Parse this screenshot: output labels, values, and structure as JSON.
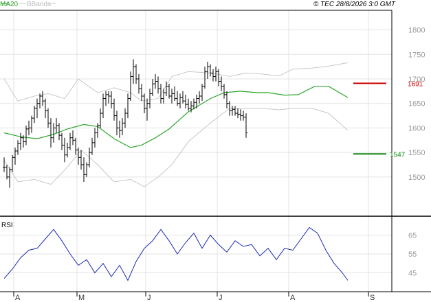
{
  "header": {
    "legend_ma": "MA20",
    "legend_bbands": "BBands",
    "source": "© TEC 28/8/2026 3:0 GMT"
  },
  "rsi_label": "RSI",
  "colors": {
    "ma": "#2aa52a",
    "bands": "#c8c8c8",
    "bar": "#000000",
    "rsi": "#1a2ab0",
    "resistance": "#cc0000",
    "support": "#118811",
    "grid": "#e3e3e3",
    "axis": "#000000"
  },
  "chart_data": [
    {
      "type": "ohlc",
      "title": "",
      "ylim": [
        1420,
        1840
      ],
      "y_ticks": [
        "1800",
        "1750",
        "1700",
        "1650",
        "1600",
        "1550",
        "1500"
      ],
      "x_ticks": [
        "A",
        "M",
        "J",
        "J",
        "A",
        "S"
      ],
      "grid": true,
      "series": [
        {
          "name": "MA20",
          "x": [
            0,
            6,
            12,
            18,
            23,
            29,
            34,
            40,
            46,
            50,
            55,
            60,
            67,
            75,
            80,
            86,
            92,
            96,
            102,
            107,
            113,
            118,
            125
          ],
          "values": [
            1590,
            1582,
            1578,
            1587,
            1598,
            1607,
            1603,
            1578,
            1560,
            1565,
            1580,
            1598,
            1633,
            1660,
            1672,
            1675,
            1672,
            1672,
            1667,
            1668,
            1685,
            1685,
            1662
          ]
        },
        {
          "name": "BBands upper",
          "x": [
            0,
            5,
            11,
            16,
            22,
            27,
            34,
            40,
            46,
            50,
            56,
            61,
            67,
            75,
            82,
            88,
            94,
            100,
            105,
            112,
            118,
            125
          ],
          "values": [
            1700,
            1655,
            1665,
            1670,
            1660,
            1700,
            1672,
            1682,
            1672,
            1655,
            1660,
            1705,
            1715,
            1712,
            1705,
            1712,
            1710,
            1706,
            1720,
            1722,
            1726,
            1733
          ]
        },
        {
          "name": "BBands lower",
          "x": [
            0,
            5,
            11,
            17,
            23,
            28,
            34,
            40,
            46,
            51,
            56,
            61,
            67,
            75,
            82,
            88,
            94,
            100,
            105,
            112,
            118,
            125
          ],
          "values": [
            1535,
            1490,
            1495,
            1485,
            1520,
            1555,
            1525,
            1490,
            1495,
            1480,
            1500,
            1525,
            1572,
            1610,
            1640,
            1640,
            1640,
            1637,
            1640,
            1640,
            1630,
            1595
          ]
        }
      ],
      "bars": [
        [
          1520,
          1540,
          1510,
          1520
        ],
        [
          1520,
          1525,
          1495,
          1500
        ],
        [
          1500,
          1520,
          1478,
          1515
        ],
        [
          1515,
          1545,
          1510,
          1540
        ],
        [
          1540,
          1560,
          1525,
          1553
        ],
        [
          1553,
          1575,
          1545,
          1568
        ],
        [
          1568,
          1590,
          1555,
          1580
        ],
        [
          1580,
          1585,
          1560,
          1572
        ],
        [
          1572,
          1605,
          1565,
          1598
        ],
        [
          1598,
          1615,
          1585,
          1600
        ],
        [
          1600,
          1625,
          1590,
          1620
        ],
        [
          1620,
          1645,
          1610,
          1640
        ],
        [
          1640,
          1660,
          1620,
          1650
        ],
        [
          1650,
          1670,
          1640,
          1665
        ],
        [
          1665,
          1675,
          1645,
          1655
        ],
        [
          1655,
          1660,
          1620,
          1635
        ],
        [
          1635,
          1640,
          1600,
          1610
        ],
        [
          1610,
          1620,
          1560,
          1580
        ],
        [
          1580,
          1610,
          1570,
          1600
        ],
        [
          1600,
          1620,
          1590,
          1605
        ],
        [
          1605,
          1610,
          1575,
          1585
        ],
        [
          1585,
          1590,
          1555,
          1565
        ],
        [
          1565,
          1580,
          1530,
          1545
        ],
        [
          1545,
          1570,
          1540,
          1560
        ],
        [
          1560,
          1590,
          1555,
          1580
        ],
        [
          1580,
          1595,
          1565,
          1575
        ],
        [
          1575,
          1580,
          1545,
          1555
        ],
        [
          1555,
          1560,
          1525,
          1540
        ],
        [
          1540,
          1555,
          1515,
          1525
        ],
        [
          1525,
          1540,
          1490,
          1505
        ],
        [
          1505,
          1530,
          1500,
          1525
        ],
        [
          1525,
          1560,
          1520,
          1550
        ],
        [
          1550,
          1580,
          1545,
          1570
        ],
        [
          1570,
          1600,
          1560,
          1590
        ],
        [
          1590,
          1610,
          1580,
          1605
        ],
        [
          1605,
          1640,
          1600,
          1630
        ],
        [
          1630,
          1670,
          1620,
          1660
        ],
        [
          1660,
          1675,
          1645,
          1668
        ],
        [
          1668,
          1675,
          1650,
          1665
        ],
        [
          1665,
          1675,
          1640,
          1650
        ],
        [
          1650,
          1660,
          1615,
          1625
        ],
        [
          1625,
          1635,
          1585,
          1600
        ],
        [
          1600,
          1615,
          1580,
          1595
        ],
        [
          1595,
          1620,
          1585,
          1610
        ],
        [
          1610,
          1640,
          1600,
          1630
        ],
        [
          1630,
          1670,
          1620,
          1660
        ],
        [
          1660,
          1715,
          1655,
          1705
        ],
        [
          1705,
          1740,
          1690,
          1725
        ],
        [
          1725,
          1730,
          1690,
          1700
        ],
        [
          1700,
          1710,
          1670,
          1680
        ],
        [
          1680,
          1690,
          1655,
          1665
        ],
        [
          1665,
          1670,
          1630,
          1640
        ],
        [
          1640,
          1660,
          1615,
          1650
        ],
        [
          1650,
          1680,
          1640,
          1670
        ],
        [
          1670,
          1700,
          1665,
          1690
        ],
        [
          1690,
          1710,
          1680,
          1695
        ],
        [
          1695,
          1705,
          1670,
          1680
        ],
        [
          1680,
          1690,
          1650,
          1660
        ],
        [
          1660,
          1680,
          1650,
          1672
        ],
        [
          1672,
          1695,
          1665,
          1685
        ],
        [
          1685,
          1690,
          1660,
          1665
        ],
        [
          1665,
          1680,
          1650,
          1670
        ],
        [
          1670,
          1685,
          1655,
          1660
        ],
        [
          1660,
          1675,
          1645,
          1650
        ],
        [
          1650,
          1670,
          1640,
          1662
        ],
        [
          1662,
          1675,
          1650,
          1655
        ],
        [
          1655,
          1668,
          1640,
          1648
        ],
        [
          1648,
          1660,
          1635,
          1640
        ],
        [
          1640,
          1655,
          1632,
          1645
        ],
        [
          1645,
          1660,
          1638,
          1652
        ],
        [
          1652,
          1668,
          1640,
          1660
        ],
        [
          1660,
          1675,
          1650,
          1665
        ],
        [
          1665,
          1690,
          1655,
          1685
        ],
        [
          1685,
          1725,
          1680,
          1715
        ],
        [
          1715,
          1735,
          1700,
          1725
        ],
        [
          1725,
          1730,
          1705,
          1712
        ],
        [
          1712,
          1720,
          1695,
          1705
        ],
        [
          1705,
          1725,
          1695,
          1715
        ],
        [
          1715,
          1720,
          1685,
          1695
        ],
        [
          1695,
          1705,
          1675,
          1685
        ],
        [
          1685,
          1690,
          1660,
          1668
        ],
        [
          1668,
          1675,
          1640,
          1650
        ],
        [
          1650,
          1655,
          1625,
          1635
        ],
        [
          1635,
          1645,
          1625,
          1638
        ],
        [
          1638,
          1645,
          1625,
          1630
        ],
        [
          1630,
          1640,
          1620,
          1628
        ],
        [
          1628,
          1638,
          1615,
          1625
        ],
        [
          1625,
          1635,
          1615,
          1622
        ],
        [
          1622,
          1630,
          1580,
          1590
        ]
      ],
      "levels": [
        {
          "value": 1691,
          "label": "1691"
        },
        {
          "value": 1547,
          "label": "1547"
        }
      ]
    },
    {
      "type": "line",
      "title": "RSI",
      "ylim": [
        35,
        75
      ],
      "y_ticks": [
        "65",
        "55",
        "45"
      ],
      "series": [
        {
          "name": "RSI",
          "x": [
            0,
            3,
            6,
            9,
            12,
            15,
            18,
            21,
            24,
            27,
            30,
            33,
            36,
            39,
            42,
            45,
            48,
            51,
            54,
            57,
            60,
            63,
            66,
            69,
            72,
            75,
            78,
            81,
            84,
            87,
            90,
            93,
            96,
            99,
            102,
            105,
            108,
            111,
            114,
            117,
            120,
            123,
            125
          ],
          "values": [
            42,
            47,
            53,
            57,
            58,
            63,
            68,
            62,
            55,
            49,
            52,
            45,
            50,
            43,
            49,
            41,
            51,
            58,
            62,
            68,
            62,
            55,
            61,
            66,
            58,
            65,
            60,
            56,
            62,
            59,
            60,
            54,
            58,
            52,
            58,
            57,
            63,
            69,
            66,
            57,
            50,
            45,
            41
          ]
        }
      ]
    }
  ]
}
